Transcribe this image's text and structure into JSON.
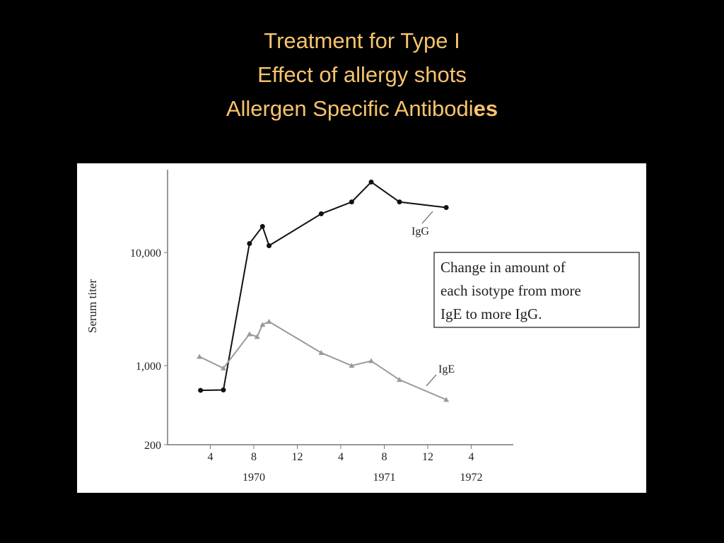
{
  "title": [
    "Treatment for Type I",
    "Effect of allergy shots",
    "Allergen Specific Antibodi"
  ],
  "title_emphasis": "es",
  "chart_data": {
    "type": "line",
    "y_label": "Serum titer",
    "log_y": true,
    "xlim": [
      0,
      32
    ],
    "ylim": [
      200,
      54000
    ],
    "yticks": [
      200,
      {
        "value": 1000,
        "label": "1,000"
      },
      {
        "value": 10000,
        "label": "10,000"
      }
    ],
    "xticks": [
      4,
      8,
      12,
      {
        "value": 16,
        "label": "4"
      },
      {
        "value": 20,
        "label": "8"
      },
      {
        "value": 24,
        "label": "12"
      },
      {
        "value": 28,
        "label": "4"
      }
    ],
    "year_labels": [
      {
        "value": 8,
        "label": "1970"
      },
      {
        "value": 20,
        "label": "1971"
      },
      {
        "value": 28,
        "label": "1972"
      }
    ],
    "series": [
      {
        "name": "IgG",
        "color": "#111111",
        "marker": "circle",
        "x": [
          3.1,
          5.2,
          7.6,
          8.8,
          9.4,
          14.2,
          17,
          18.8,
          21.4,
          25.7
        ],
        "values": [
          605,
          610,
          12000,
          17000,
          11500,
          22000,
          28000,
          42000,
          28000,
          25000
        ]
      },
      {
        "name": "IgE",
        "color": "#9a9a9a",
        "marker": "triangle",
        "x": [
          3,
          5.2,
          7.6,
          8.3,
          8.8,
          9.4,
          14.2,
          17,
          18.8,
          21.4,
          25.7
        ],
        "values": [
          1200,
          950,
          1900,
          1800,
          2300,
          2450,
          1300,
          1000,
          1100,
          750,
          500
        ]
      }
    ],
    "annotation": [
      "Change in amount of",
      "each isotype from more",
      "IgE to more IgG."
    ]
  }
}
